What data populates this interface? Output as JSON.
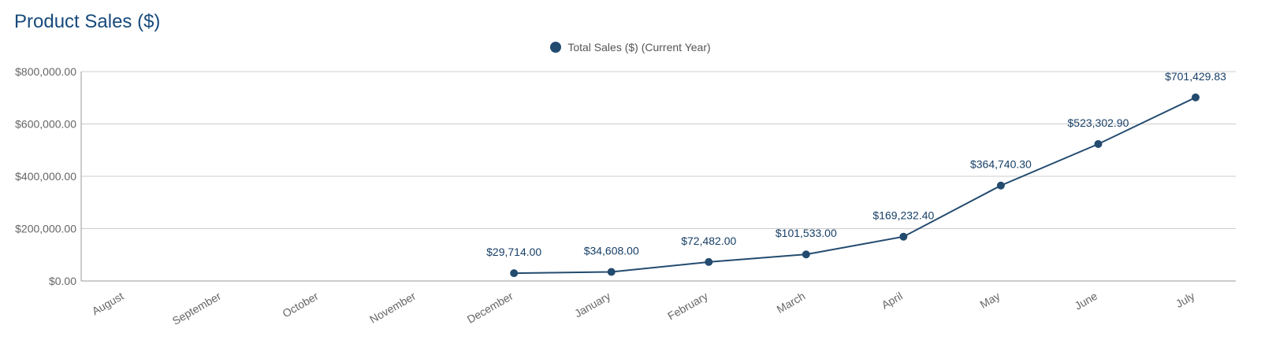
{
  "chart_title": "Product Sales ($)",
  "legend": {
    "label": "Total Sales ($) (Current Year)"
  },
  "colors": {
    "title": "#174a7c",
    "series": "#234b6f",
    "grid": "#cccccc",
    "axis": "#999999",
    "labels": "#666666"
  },
  "chart_data": {
    "type": "line",
    "title": "Product Sales ($)",
    "xlabel": "",
    "ylabel": "",
    "ylim": [
      0,
      800000
    ],
    "y_ticks": [
      {
        "value": 0,
        "label": "$0.00"
      },
      {
        "value": 200000,
        "label": "$200,000.00"
      },
      {
        "value": 400000,
        "label": "$400,000.00"
      },
      {
        "value": 600000,
        "label": "$600,000.00"
      },
      {
        "value": 800000,
        "label": "$800,000.00"
      }
    ],
    "categories": [
      "August",
      "September",
      "October",
      "November",
      "December",
      "January",
      "February",
      "March",
      "April",
      "May",
      "June",
      "July"
    ],
    "grid": true,
    "legend_position": "top-center",
    "series": [
      {
        "name": "Total Sales ($) (Current Year)",
        "values": [
          null,
          null,
          null,
          null,
          29714.0,
          34608.0,
          72482.0,
          101533.0,
          169232.4,
          364740.3,
          523302.9,
          701429.83
        ],
        "labels": [
          "",
          "",
          "",
          "",
          "$29,714.00",
          "$34,608.00",
          "$72,482.00",
          "$101,533.00",
          "$169,232.40",
          "$364,740.30",
          "$523,302.90",
          "$701,429.83"
        ]
      }
    ]
  }
}
